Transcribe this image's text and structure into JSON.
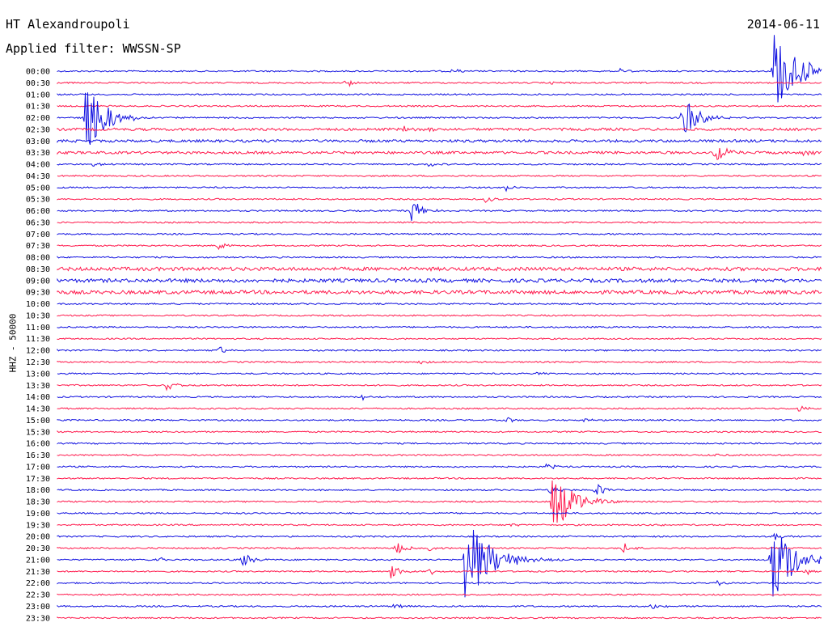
{
  "header": {
    "station": "HT Alexandroupoli",
    "filter": "Applied filter: WWSSN-SP",
    "date": "2014-06-11"
  },
  "colors": {
    "blue": "#1010e0",
    "red": "#ff1a4d"
  },
  "chart_data": {
    "type": "line",
    "ylabel": "HHZ - 50000",
    "row_labels": [
      "00:00",
      "00:30",
      "01:00",
      "01:30",
      "02:00",
      "02:30",
      "03:00",
      "03:30",
      "04:00",
      "04:30",
      "05:00",
      "05:30",
      "06:00",
      "06:30",
      "07:00",
      "07:30",
      "08:00",
      "08:30",
      "09:00",
      "09:30",
      "10:00",
      "10:30",
      "11:00",
      "11:30",
      "12:00",
      "12:30",
      "13:00",
      "13:30",
      "14:00",
      "14:30",
      "15:00",
      "15:30",
      "16:00",
      "16:30",
      "17:00",
      "17:30",
      "18:00",
      "18:30",
      "19:00",
      "19:30",
      "20:00",
      "20:30",
      "21:00",
      "21:30",
      "22:00",
      "22:30",
      "23:00",
      "23:30"
    ],
    "row_colors": [
      "blue",
      "red"
    ],
    "events": [
      {
        "row": 0,
        "minute": 15.5,
        "amp": 5
      },
      {
        "row": 0,
        "minute": 22.1,
        "amp": 4
      },
      {
        "row": 0,
        "minute": 28.1,
        "amp": 55
      },
      {
        "row": 0,
        "minute": 29.3,
        "amp": 5
      },
      {
        "row": 1,
        "minute": 11.3,
        "amp": 8
      },
      {
        "row": 1,
        "minute": 19.4,
        "amp": 3
      },
      {
        "row": 4,
        "minute": 1.1,
        "amp": 45
      },
      {
        "row": 4,
        "minute": 24.5,
        "amp": 30
      },
      {
        "row": 5,
        "minute": 13.6,
        "amp": 5
      },
      {
        "row": 5,
        "minute": 14.6,
        "amp": 4
      },
      {
        "row": 7,
        "minute": 25.8,
        "amp": 14
      },
      {
        "row": 7,
        "minute": 29.3,
        "amp": 6
      },
      {
        "row": 8,
        "minute": 1.4,
        "amp": 3
      },
      {
        "row": 8,
        "minute": 14.6,
        "amp": 4
      },
      {
        "row": 10,
        "minute": 17.6,
        "amp": 4
      },
      {
        "row": 11,
        "minute": 16.8,
        "amp": 5
      },
      {
        "row": 12,
        "minute": 13.9,
        "amp": 16
      },
      {
        "row": 15,
        "minute": 6.3,
        "amp": 7
      },
      {
        "row": 24,
        "minute": 6.3,
        "amp": 6
      },
      {
        "row": 25,
        "minute": 14.2,
        "amp": 3
      },
      {
        "row": 26,
        "minute": 18.8,
        "amp": 4
      },
      {
        "row": 27,
        "minute": 4.3,
        "amp": 9
      },
      {
        "row": 28,
        "minute": 11.9,
        "amp": 5
      },
      {
        "row": 29,
        "minute": 29.1,
        "amp": 5
      },
      {
        "row": 30,
        "minute": 17.6,
        "amp": 5
      },
      {
        "row": 30,
        "minute": 20.7,
        "amp": 3
      },
      {
        "row": 33,
        "minute": 25.8,
        "amp": 3
      },
      {
        "row": 34,
        "minute": 19.2,
        "amp": 5
      },
      {
        "row": 36,
        "minute": 19.3,
        "amp": 7
      },
      {
        "row": 36,
        "minute": 21.1,
        "amp": 10
      },
      {
        "row": 37,
        "minute": 19.4,
        "amp": 45
      },
      {
        "row": 39,
        "minute": 17.8,
        "amp": 3
      },
      {
        "row": 39,
        "minute": 23.7,
        "amp": 3
      },
      {
        "row": 40,
        "minute": 28.1,
        "amp": 6
      },
      {
        "row": 41,
        "minute": 13.3,
        "amp": 9
      },
      {
        "row": 41,
        "minute": 14.6,
        "amp": 5
      },
      {
        "row": 41,
        "minute": 22.2,
        "amp": 7
      },
      {
        "row": 42,
        "minute": 7.2,
        "amp": 12
      },
      {
        "row": 42,
        "minute": 3.9,
        "amp": 5
      },
      {
        "row": 43,
        "minute": 13.1,
        "amp": 10
      },
      {
        "row": 43,
        "minute": 14.6,
        "amp": 5
      },
      {
        "row": 42,
        "minute": 16.0,
        "amp": 60
      },
      {
        "row": 42,
        "minute": 28.0,
        "amp": 55
      },
      {
        "row": 43,
        "minute": 29.3,
        "amp": 6
      },
      {
        "row": 44,
        "minute": 25.9,
        "amp": 4
      },
      {
        "row": 46,
        "minute": 13.2,
        "amp": 4
      },
      {
        "row": 46,
        "minute": 23.3,
        "amp": 5
      }
    ]
  }
}
